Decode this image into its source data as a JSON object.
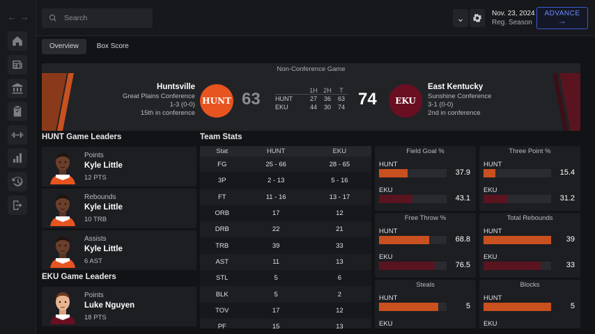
{
  "nav": {
    "back_glyph": "←",
    "forward_glyph": "→",
    "items": [
      {
        "icon": "home-icon"
      },
      {
        "icon": "news-icon"
      },
      {
        "icon": "league-icon"
      },
      {
        "icon": "clipboard-icon"
      },
      {
        "icon": "training-icon"
      },
      {
        "icon": "stats-icon"
      },
      {
        "icon": "history-icon"
      },
      {
        "icon": "exit-icon"
      }
    ]
  },
  "topbar": {
    "search_placeholder": "Search",
    "dropdown_glyph": "⌄",
    "date": "Nov. 23, 2024",
    "season": "Reg. Season",
    "advance_label": "ADVANCE",
    "advance_arrow": "→"
  },
  "tabs": [
    {
      "label": "Overview",
      "active": true
    },
    {
      "label": "Box Score",
      "active": false
    }
  ],
  "game": {
    "title": "Non-Conference Game",
    "home": {
      "name": "Huntsville",
      "abbr": "HUNT",
      "conference": "Great Plains Conference",
      "record": "1-3 (0-0)",
      "standing": "15th in conference",
      "score": "63",
      "color": "#e8541f"
    },
    "away": {
      "name": "East Kentucky",
      "abbr": "EKU",
      "conference": "Sunshine Conference",
      "record": "3-1 (0-0)",
      "standing": "2nd in conference",
      "score": "74",
      "color": "#6a0f22"
    },
    "linescore": {
      "headers": [
        "1H",
        "2H",
        "T"
      ],
      "rows": [
        {
          "team": "HUNT",
          "h1": "27",
          "h2": "36",
          "t": "63"
        },
        {
          "team": "EKU",
          "h1": "44",
          "h2": "30",
          "t": "74"
        }
      ]
    }
  },
  "home_leaders": {
    "title": "HUNT Game Leaders",
    "items": [
      {
        "category": "Points",
        "name": "Kyle Little",
        "stat": "12 PTS"
      },
      {
        "category": "Rebounds",
        "name": "Kyle Little",
        "stat": "10 TRB"
      },
      {
        "category": "Assists",
        "name": "Kyle Little",
        "stat": "6 AST"
      }
    ]
  },
  "away_leaders": {
    "title": "EKU Game Leaders",
    "items": [
      {
        "category": "Points",
        "name": "Luke Nguyen",
        "stat": "18 PTS"
      }
    ]
  },
  "team_stats": {
    "title": "Team Stats",
    "headers": [
      "Stat",
      "HUNT",
      "EKU"
    ],
    "rows": [
      [
        "FG",
        "25 - 66",
        "28 - 65"
      ],
      [
        "3P",
        "2 - 13",
        "5 - 16"
      ],
      [
        "FT",
        "11 - 16",
        "13 - 17"
      ],
      [
        "ORB",
        "17",
        "12"
      ],
      [
        "DRB",
        "22",
        "21"
      ],
      [
        "TRB",
        "39",
        "33"
      ],
      [
        "AST",
        "11",
        "13"
      ],
      [
        "STL",
        "5",
        "6"
      ],
      [
        "BLK",
        "5",
        "2"
      ],
      [
        "TOV",
        "17",
        "12"
      ],
      [
        "PF",
        "15",
        "13"
      ]
    ]
  },
  "comparisons": [
    {
      "title": "Field Goal %",
      "home_label": "HUNT",
      "home_value": "37.9",
      "home_fill": 0.42,
      "away_label": "EKU",
      "away_value": "43.1",
      "away_fill": 0.49
    },
    {
      "title": "Three Point %",
      "home_label": "HUNT",
      "home_value": "15.4",
      "home_fill": 0.18,
      "away_label": "EKU",
      "away_value": "31.2",
      "away_fill": 0.36
    },
    {
      "title": "Free Throw %",
      "home_label": "HUNT",
      "home_value": "68.8",
      "home_fill": 0.74,
      "away_label": "EKU",
      "away_value": "76.5",
      "away_fill": 0.82
    },
    {
      "title": "Total Rebounds",
      "home_label": "HUNT",
      "home_value": "39",
      "home_fill": 1.0,
      "away_label": "EKU",
      "away_value": "33",
      "away_fill": 0.85
    },
    {
      "title": "Steals",
      "home_label": "HUNT",
      "home_value": "5",
      "home_fill": 0.88,
      "away_label": "EKU",
      "away_value": "",
      "away_fill": 0
    },
    {
      "title": "Blocks",
      "home_label": "HUNT",
      "home_value": "5",
      "home_fill": 1.0,
      "away_label": "EKU",
      "away_value": "",
      "away_fill": 0
    }
  ],
  "colors": {
    "home_bar": "#c9501f",
    "away_bar": "#5a1420",
    "advance_accent": "#3b5bd6"
  }
}
